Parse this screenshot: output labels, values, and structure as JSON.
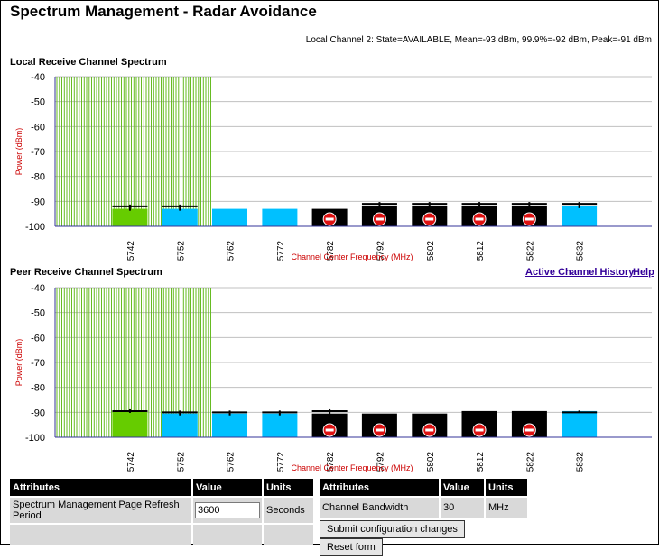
{
  "page": {
    "title": "Spectrum Management - Radar Avoidance",
    "status_line": "Local Channel 2: State=AVAILABLE, Mean=-93 dBm, 99.9%=-92 dBm, Peak=-91 dBm"
  },
  "links": {
    "history": "Active Channel History",
    "help": "Help"
  },
  "colors": {
    "green": "#66cc00",
    "cyan": "#00c0ff",
    "black": "#000000",
    "grid": "#c0c0c0",
    "axis_label": "#cc0000",
    "stripe": "#66bb22",
    "no_entry": "#dd1111"
  },
  "chart_data": [
    {
      "type": "bar",
      "title": "Local Receive Channel Spectrum",
      "ylabel": "Power (dBm)",
      "xlabel": "Channel Center Frequency (MHz)",
      "ylim": [
        -100,
        -40
      ],
      "yticks": [
        "-40",
        "-50",
        "-60",
        "-70",
        "-80",
        "-90",
        "-100"
      ],
      "categories": [
        "5742",
        "5752",
        "5762",
        "5772",
        "5782",
        "5792",
        "5802",
        "5812",
        "5822",
        "5832"
      ],
      "values": [
        -93,
        -93,
        -93,
        -93,
        -93,
        -92,
        -92,
        -92,
        -92,
        -92
      ],
      "peaks": [
        -92,
        -92,
        null,
        null,
        null,
        -91,
        -91,
        -91,
        -91,
        -91
      ],
      "bar_colors": [
        "green",
        "cyan",
        "cyan",
        "cyan",
        "black",
        "black",
        "black",
        "black",
        "black",
        "cyan"
      ],
      "barred": [
        false,
        false,
        false,
        false,
        true,
        true,
        true,
        true,
        true,
        false
      ],
      "striped_channels": [
        "5742",
        "5752"
      ]
    },
    {
      "type": "bar",
      "title": "Peer Receive Channel Spectrum",
      "ylabel": "Power (dBm)",
      "xlabel": "Channel Center Frequency (MHz)",
      "ylim": [
        -100,
        -40
      ],
      "yticks": [
        "-40",
        "-50",
        "-60",
        "-70",
        "-80",
        "-90",
        "-100"
      ],
      "categories": [
        "5742",
        "5752",
        "5762",
        "5772",
        "5782",
        "5792",
        "5802",
        "5812",
        "5822",
        "5832"
      ],
      "values": [
        -89.5,
        -90.5,
        -90.5,
        -90.5,
        -90.5,
        -90.5,
        -90.5,
        -89.5,
        -89.5,
        -89.5
      ],
      "peaks": [
        -89.5,
        -90,
        -90,
        -90,
        -89.5,
        null,
        null,
        null,
        null,
        -90
      ],
      "bar_colors": [
        "green",
        "cyan",
        "cyan",
        "cyan",
        "black",
        "black",
        "black",
        "black",
        "black",
        "cyan"
      ],
      "barred": [
        false,
        false,
        false,
        false,
        true,
        true,
        true,
        true,
        true,
        false
      ],
      "striped_channels": [
        "5742",
        "5752"
      ]
    }
  ],
  "left_table": {
    "headers": [
      "Attributes",
      "Value",
      "Units"
    ],
    "row_label": "Spectrum Management Page Refresh Period",
    "row_value": "3600",
    "row_units": "Seconds"
  },
  "right_table": {
    "headers": [
      "Attributes",
      "Value",
      "Units"
    ],
    "row_label": "Channel Bandwidth",
    "row_value": "30",
    "row_units": "MHz",
    "submit_label": "Submit configuration changes",
    "reset_label": "Reset form"
  }
}
